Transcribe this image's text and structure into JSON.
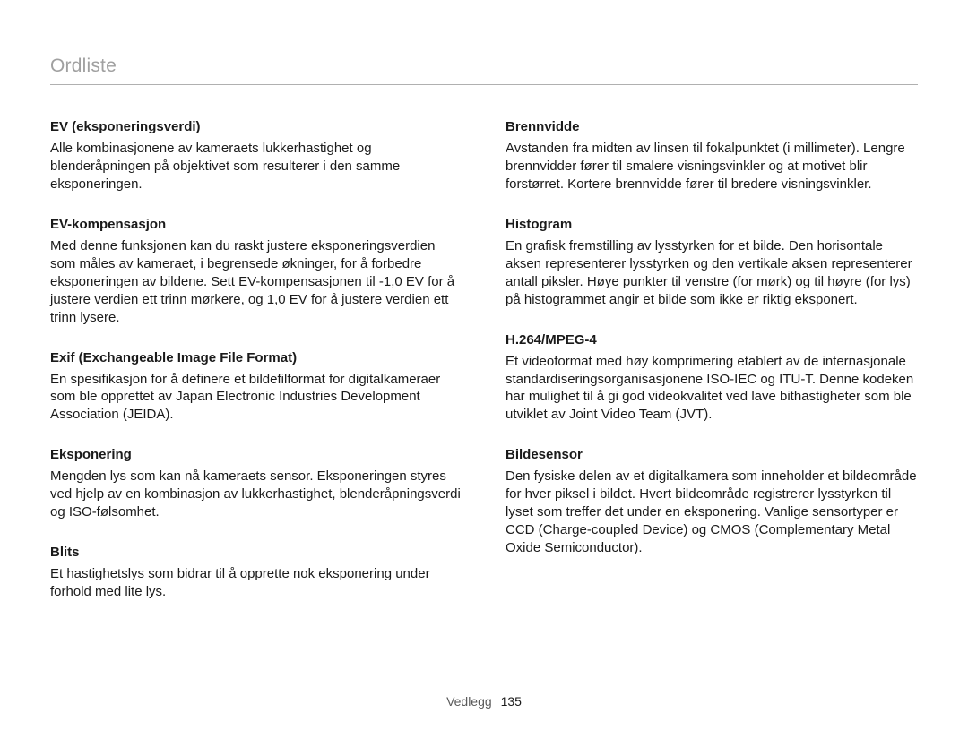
{
  "header": {
    "title": "Ordliste"
  },
  "columns": {
    "left": [
      {
        "term": "EV (eksponeringsverdi)",
        "def": "Alle kombinasjonene av kameraets lukkerhastighet og blenderåpningen på objektivet som resulterer i den samme eksponeringen."
      },
      {
        "term": "EV-kompensasjon",
        "def": "Med denne funksjonen kan du raskt justere eksponeringsverdien som måles av kameraet, i begrensede økninger, for å forbedre eksponeringen av bildene. Sett EV-kompensasjonen til -1,0 EV for å justere verdien ett trinn mørkere, og 1,0 EV for å justere verdien ett trinn lysere."
      },
      {
        "term": "Exif (Exchangeable Image File Format)",
        "def": "En spesifikasjon for å definere et bildefilformat for digitalkameraer som ble opprettet av Japan Electronic Industries Development Association (JEIDA)."
      },
      {
        "term": "Eksponering",
        "def": "Mengden lys som kan nå kameraets sensor. Eksponeringen styres ved hjelp av en kombinasjon av lukkerhastighet, blenderåpningsverdi og ISO-følsomhet."
      },
      {
        "term": "Blits",
        "def": "Et hastighetslys som bidrar til å opprette nok eksponering under forhold med lite lys."
      }
    ],
    "right": [
      {
        "term": "Brennvidde",
        "def": "Avstanden fra midten av linsen til fokalpunktet (i millimeter). Lengre brennvidder fører til smalere visningsvinkler og at motivet blir forstørret. Kortere brennvidde fører til bredere visningsvinkler."
      },
      {
        "term": "Histogram",
        "def": "En grafisk fremstilling av lysstyrken for et bilde. Den horisontale aksen representerer lysstyrken og den vertikale aksen representerer antall piksler. Høye punkter til venstre (for mørk) og til høyre (for lys) på histogrammet angir et bilde som ikke er riktig eksponert."
      },
      {
        "term": "H.264/MPEG-4",
        "def": "Et videoformat med høy komprimering etablert av de internasjonale standardiseringsorganisasjonene ISO-IEC og ITU-T. Denne kodeken har mulighet til å gi god videokvalitet ved lave bithastigheter som ble utviklet av Joint Video Team (JVT)."
      },
      {
        "term": "Bildesensor",
        "def": "Den fysiske delen av et digitalkamera som inneholder et bildeområde for hver piksel i bildet. Hvert bildeområde registrerer lysstyrken til lyset som treffer det under en eksponering. Vanlige sensortyper er CCD (Charge-coupled Device) og CMOS (Complementary Metal Oxide Semiconductor)."
      }
    ]
  },
  "footer": {
    "section": "Vedlegg",
    "page": "135"
  }
}
